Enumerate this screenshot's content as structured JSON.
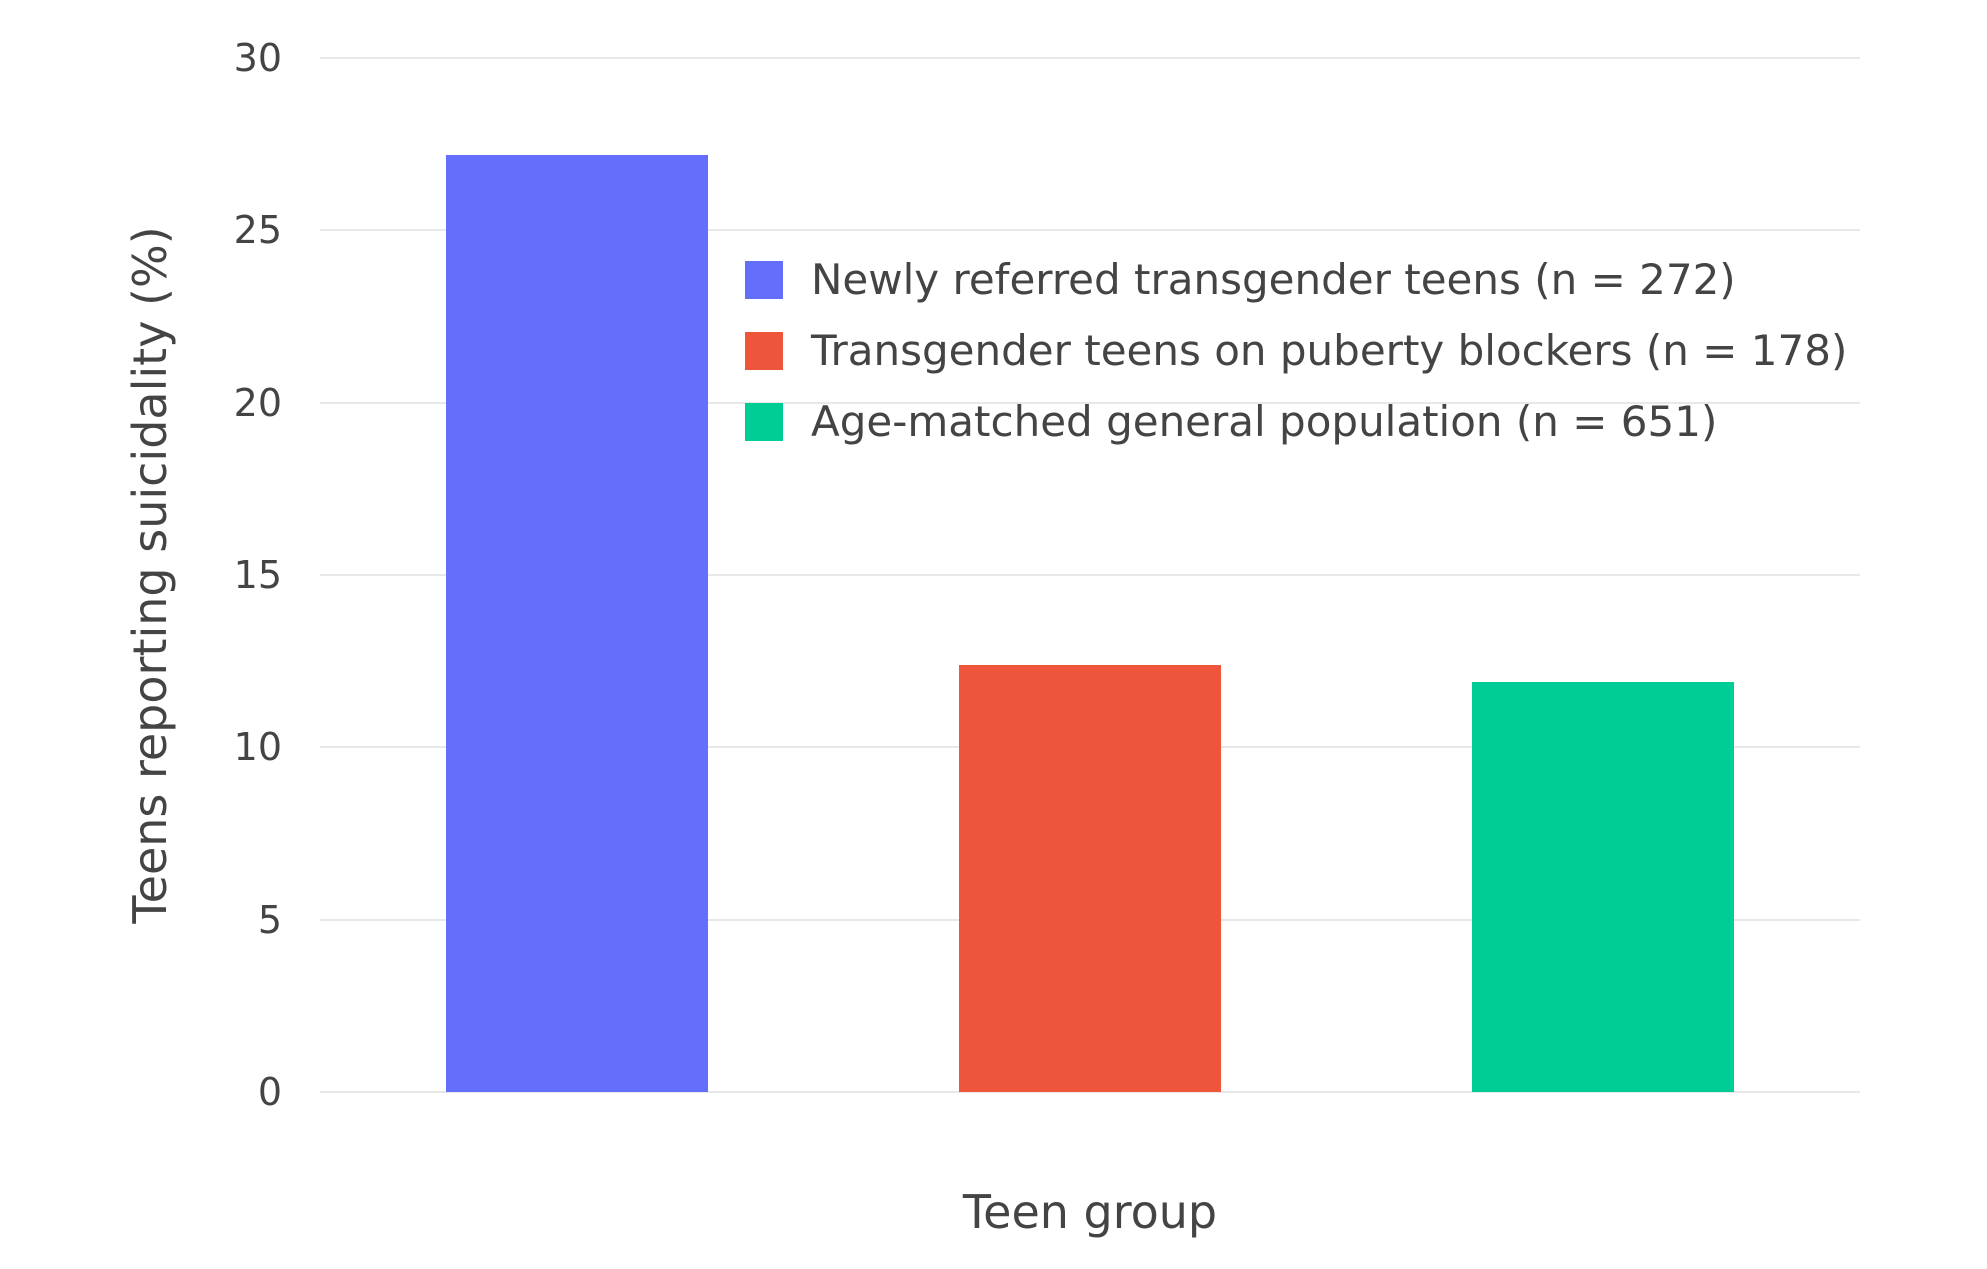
{
  "chart_data": {
    "type": "bar",
    "title": "",
    "xlabel": "Teen group",
    "ylabel": "Teens reporting suicidality (%)",
    "ylim": [
      0,
      30
    ],
    "yticks": [
      0,
      5,
      10,
      15,
      20,
      25,
      30
    ],
    "categories": [
      "Newly referred transgender teens (n = 272)",
      "Transgender teens on puberty blockers (n = 178)",
      "Age-matched general population (n = 651)"
    ],
    "values": [
      27.2,
      12.4,
      11.9
    ],
    "colors": [
      "#636EFA",
      "#EF553B",
      "#00CC96"
    ],
    "grid": true,
    "legend_position": "inside-top-center",
    "background_color": "#ffffff",
    "gridline_color": "#e8e8e8",
    "text_color": "#444444"
  }
}
